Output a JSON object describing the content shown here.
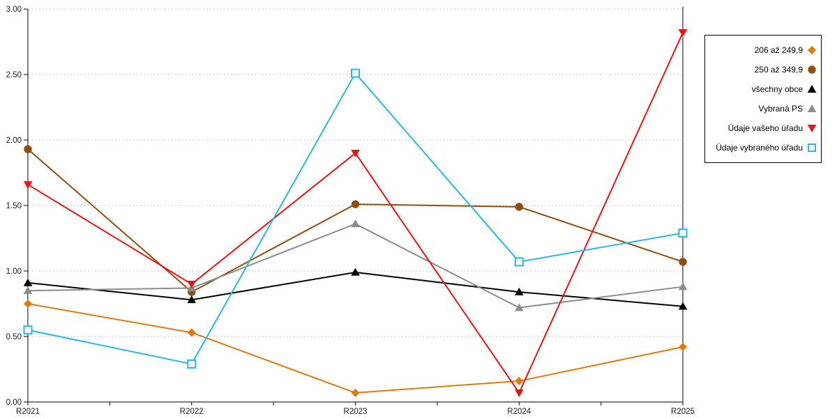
{
  "chart_data": {
    "type": "line",
    "categories": [
      "R2021",
      "R2022",
      "R2023",
      "R2024",
      "R2025"
    ],
    "series": [
      {
        "name": "206 až 249,9",
        "marker": "diamond",
        "color": "#e2790f",
        "values": [
          0.75,
          0.53,
          0.07,
          0.16,
          0.42
        ]
      },
      {
        "name": "250 až 349,9",
        "marker": "circle",
        "color": "#8f4e0f",
        "values": [
          1.93,
          0.84,
          1.51,
          1.49,
          1.07
        ]
      },
      {
        "name": "všechny obce",
        "marker": "triangle-up",
        "color": "#000000",
        "values": [
          0.91,
          0.78,
          0.99,
          0.84,
          0.73
        ]
      },
      {
        "name": "Vybraná PS",
        "marker": "triangle-up",
        "color": "#8c8c8c",
        "values": [
          0.85,
          0.87,
          1.36,
          0.72,
          0.88
        ]
      },
      {
        "name": "Údaje vašeho úřadu",
        "marker": "triangle-down",
        "color": "#ee1212",
        "values": [
          1.66,
          0.9,
          1.9,
          0.07,
          2.82
        ]
      },
      {
        "name": "Údaje vybraného úřadu",
        "marker": "square-open",
        "color": "#29b6e8",
        "values": [
          0.55,
          0.29,
          2.51,
          1.07,
          1.29
        ]
      }
    ],
    "ylim": [
      0,
      3
    ],
    "ytick_step": 0.5,
    "ytick_labels": [
      "0.00",
      "0.50",
      "1.00",
      "1.50",
      "2.00",
      "2.50",
      "3.00"
    ],
    "xlabel": "",
    "ylabel": "",
    "title": "",
    "grid": "horizontal-dotted",
    "legend_position": "top-right"
  },
  "style": {
    "axis_color": "#000000",
    "grid_color": "#b8b8b8",
    "label_color": "#1a1a1a",
    "background": "#ffffff"
  }
}
